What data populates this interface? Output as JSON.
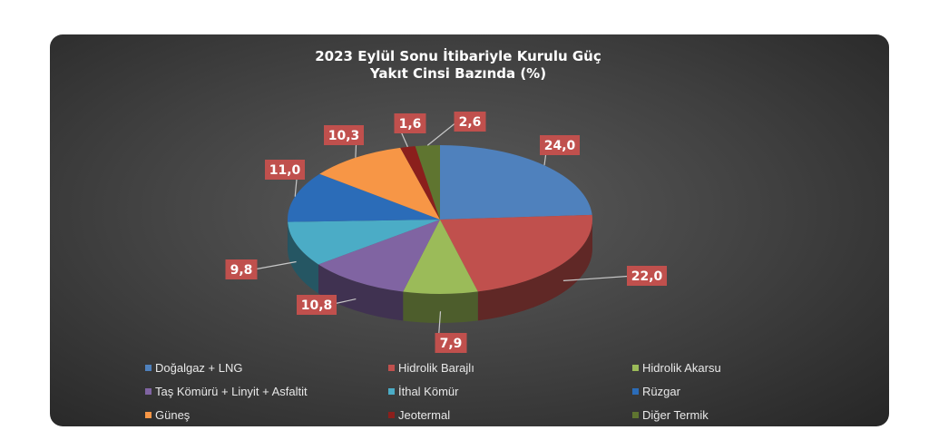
{
  "chart_data": {
    "type": "pie",
    "title": [
      "2023 Eylül Sonu İtibariyle Kurulu Güç",
      "Yakıt Cinsi Bazında (%)"
    ],
    "three_d": true,
    "legend_position": "bottom",
    "categories": [
      "Doğalgaz + LNG",
      "Hidrolik Barajlı",
      "Hidrolik Akarsu",
      "Taş Kömürü + Linyit + Asfaltit",
      "İthal Kömür",
      "Rüzgar",
      "Güneş",
      "Jeotermal",
      "Diğer Termik"
    ],
    "values": [
      24.0,
      22.0,
      7.9,
      10.8,
      9.8,
      11.0,
      10.3,
      1.6,
      2.6
    ],
    "labels": [
      "24,0",
      "22,0",
      "7,9",
      "10,8",
      "9,8",
      "11,0",
      "10,3",
      "1,6",
      "2,6"
    ],
    "colors": [
      "#4f81bd",
      "#c0504d",
      "#9bbb59",
      "#8064a2",
      "#4bacc6",
      "#2b6cb8",
      "#f79646",
      "#8b1f1c",
      "#5f7530"
    ],
    "label_background": "#c0504d"
  }
}
